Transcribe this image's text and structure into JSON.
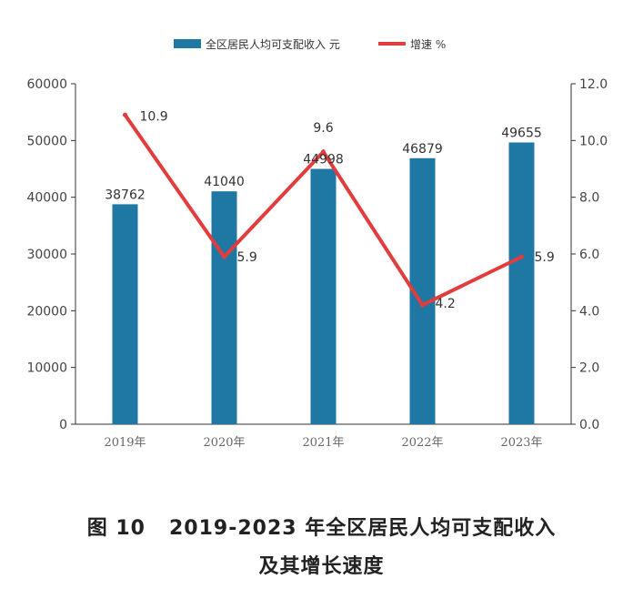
{
  "chart_data": {
    "type": "bar",
    "categories": [
      "2019年",
      "2020年",
      "2021年",
      "2022年",
      "2023年"
    ],
    "series": [
      {
        "name": "全区居民人均可支配收入 元",
        "type": "bar",
        "axis": "left",
        "color": "#1f78a4",
        "values": [
          38762,
          41040,
          44998,
          46879,
          49655
        ]
      },
      {
        "name": "增速 %",
        "type": "line",
        "axis": "right",
        "color": "#e23c3c",
        "values": [
          10.9,
          5.9,
          9.6,
          4.2,
          5.9
        ]
      }
    ],
    "y_left": {
      "ylim": [
        0,
        60000
      ],
      "ticks": [
        "0",
        "10000",
        "20000",
        "30000",
        "40000",
        "50000",
        "60000"
      ]
    },
    "y_right": {
      "ylim": [
        0,
        12.0
      ],
      "ticks": [
        "0.0",
        "2.0",
        "4.0",
        "6.0",
        "8.0",
        "10.0",
        "12.0"
      ]
    },
    "bar_labels": [
      "38762",
      "41040",
      "44998",
      "46879",
      "49655"
    ],
    "line_labels": [
      "10.9",
      "5.9",
      "9.6",
      "4.2",
      "5.9"
    ],
    "legend": {
      "position": "top-center",
      "items": [
        "全区居民人均可支配收入 元",
        "增速 %"
      ]
    },
    "grid": false
  },
  "caption": {
    "figure_label": "图 10",
    "line1": "2019-2023 年全区居民人均可支配收入",
    "line2": "及其增长速度"
  }
}
